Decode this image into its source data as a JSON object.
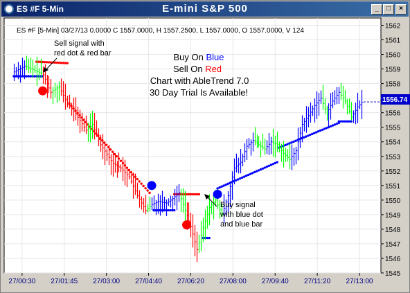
{
  "window": {
    "symbol_title": "ES #F 5-Min",
    "main_title": "E-mini S&P 500",
    "buttons": [
      "_",
      "□",
      "×"
    ]
  },
  "info_line": "ES #F [5-Min] 03/27/13  0.0000 C 1557.0000, H 1557.2500, L 1557.0000, O 1557.0000, V 124",
  "banner": {
    "buy_prefix": "Buy On ",
    "buy_word": "Blue",
    "sell_prefix": "Sell On ",
    "sell_word": "Red",
    "line3": "Chart with AbleTrend 7.0",
    "line4": "30 Day Trial Is Available!"
  },
  "annotations": {
    "sell": [
      "Sell signal with",
      "red dot & red bar"
    ],
    "buy": [
      "Buy signal",
      "with blue dot",
      "and blue bar"
    ]
  },
  "price_label": "1556.74",
  "colors": {
    "up_bar": "#0000ff",
    "down_bar": "#ff0000",
    "neutral_bar": "#00ff00",
    "buy_signal": "#0000ff",
    "sell_signal": "#ff0000",
    "grid": "#e6e6e6",
    "plot_bg": "#ffffff",
    "price_tag_bg": "#0000cc"
  },
  "chart_data": {
    "type": "bar",
    "subtype": "ohlc",
    "ylim": [
      1545,
      1562.5
    ],
    "yticks": [
      1545,
      1546,
      1547,
      1548,
      1549,
      1550,
      1551,
      1552,
      1553,
      1554,
      1555,
      1556,
      1557,
      1558,
      1559,
      1560,
      1561,
      1562
    ],
    "xtick_labels": [
      "27/00:30",
      "27/01:45",
      "27/03:00",
      "27/04:40",
      "27/06:20",
      "27/08:00",
      "27/09:40",
      "27/11:20",
      "27/13:00"
    ],
    "bar_count": 170,
    "last_price": 1556.74,
    "grid": true,
    "anchors": [
      [
        0,
        1558.8
      ],
      [
        5,
        1559.2
      ],
      [
        10,
        1558.9
      ],
      [
        14,
        1558.6
      ],
      [
        18,
        1557.4
      ],
      [
        22,
        1557.8
      ],
      [
        25,
        1556.9
      ],
      [
        30,
        1555.9
      ],
      [
        35,
        1554.8
      ],
      [
        38,
        1555.2
      ],
      [
        42,
        1553.8
      ],
      [
        48,
        1552.5
      ],
      [
        52,
        1552.2
      ],
      [
        56,
        1551.6
      ],
      [
        60,
        1550.3
      ],
      [
        64,
        1549.3
      ],
      [
        67,
        1549.7
      ],
      [
        70,
        1549.9
      ],
      [
        74,
        1549.8
      ],
      [
        77,
        1550.1
      ],
      [
        80,
        1550.5
      ],
      [
        83,
        1549.3
      ],
      [
        86,
        1548.2
      ],
      [
        89,
        1546.6
      ],
      [
        92,
        1548.1
      ],
      [
        95,
        1549.5
      ],
      [
        98,
        1550.0
      ],
      [
        101,
        1549.0
      ],
      [
        104,
        1550.3
      ],
      [
        107,
        1552.2
      ],
      [
        110,
        1552.6
      ],
      [
        113,
        1553.7
      ],
      [
        116,
        1554.1
      ],
      [
        119,
        1553.8
      ],
      [
        122,
        1553.5
      ],
      [
        125,
        1554.0
      ],
      [
        128,
        1553.8
      ],
      [
        131,
        1553.2
      ],
      [
        134,
        1552.8
      ],
      [
        137,
        1553.4
      ],
      [
        140,
        1555.2
      ],
      [
        143,
        1555.8
      ],
      [
        146,
        1556.5
      ],
      [
        149,
        1557.0
      ],
      [
        152,
        1555.9
      ],
      [
        155,
        1556.8
      ],
      [
        158,
        1557.4
      ],
      [
        161,
        1556.8
      ],
      [
        164,
        1555.7
      ],
      [
        167,
        1556.4
      ],
      [
        169,
        1556.7
      ]
    ],
    "stop_segments": [
      {
        "color": "blue",
        "from": 0,
        "to": 14,
        "start": 1558.5,
        "end": 1558.5
      },
      {
        "color": "red",
        "from": 11,
        "to": 26,
        "start": 1559.5,
        "end": 1559.4
      },
      {
        "color": "red",
        "from": 27,
        "to": 66,
        "start": 1556.6,
        "end": 1550.5
      },
      {
        "color": "blue",
        "from": 68,
        "to": 78,
        "start": 1549.3,
        "end": 1549.3
      },
      {
        "color": "red",
        "from": 78,
        "to": 90,
        "start": 1550.4,
        "end": 1550.4
      },
      {
        "color": "blue",
        "from": 92,
        "to": 95,
        "start": 1547.4,
        "end": 1547.4
      },
      {
        "color": "blue",
        "from": 99,
        "to": 128,
        "start": 1550.8,
        "end": 1552.6
      },
      {
        "color": "blue",
        "from": 129,
        "to": 158,
        "start": 1553.6,
        "end": 1555.3
      },
      {
        "color": "blue",
        "from": 158,
        "to": 164,
        "start": 1555.4,
        "end": 1555.4
      }
    ],
    "signals": [
      {
        "type": "sell",
        "bar": 14,
        "price": 1557.5
      },
      {
        "type": "buy",
        "bar": 67,
        "price": 1551.0
      },
      {
        "type": "sell",
        "bar": 84,
        "price": 1548.3
      },
      {
        "type": "buy",
        "bar": 99,
        "price": 1550.4
      }
    ]
  }
}
